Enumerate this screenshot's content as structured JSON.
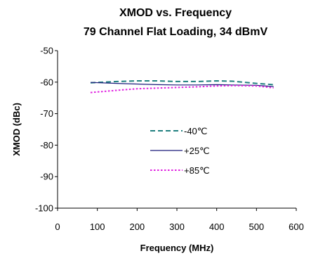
{
  "chart_data": {
    "type": "line",
    "title": "XMOD vs. Frequency",
    "subtitle": "79 Channel Flat Loading, 34 dBmV",
    "xlabel": "Frequency (MHz)",
    "ylabel": "XMOD (dBc)",
    "xlim": [
      0,
      600
    ],
    "ylim": [
      -100,
      -50
    ],
    "xticks": [
      0,
      100,
      200,
      300,
      400,
      500,
      600
    ],
    "yticks": [
      -50,
      -60,
      -70,
      -80,
      -90,
      -100
    ],
    "grid": false,
    "legend_position": "center",
    "series": [
      {
        "name": "-40℃",
        "color": "#1f7f7f",
        "dash": "dashed",
        "x": [
          83,
          150,
          200,
          250,
          300,
          350,
          400,
          440,
          500,
          543
        ],
        "y": [
          -60.2,
          -59.8,
          -59.6,
          -59.6,
          -59.8,
          -59.8,
          -59.6,
          -59.7,
          -60.4,
          -60.8
        ]
      },
      {
        "name": "+25℃",
        "color": "#1a1a7a",
        "dash": "solid",
        "x": [
          83,
          150,
          200,
          250,
          300,
          350,
          400,
          440,
          500,
          543
        ],
        "y": [
          -60.1,
          -60.4,
          -60.6,
          -60.8,
          -60.9,
          -60.9,
          -60.8,
          -60.9,
          -61.0,
          -61.4
        ]
      },
      {
        "name": "+85℃",
        "color": "#e020e0",
        "dash": "dotted",
        "x": [
          83,
          150,
          200,
          250,
          300,
          350,
          400,
          440,
          500,
          543
        ],
        "y": [
          -63.3,
          -62.6,
          -62.1,
          -61.9,
          -61.7,
          -61.5,
          -61.2,
          -61.1,
          -61.2,
          -61.8
        ]
      }
    ]
  }
}
